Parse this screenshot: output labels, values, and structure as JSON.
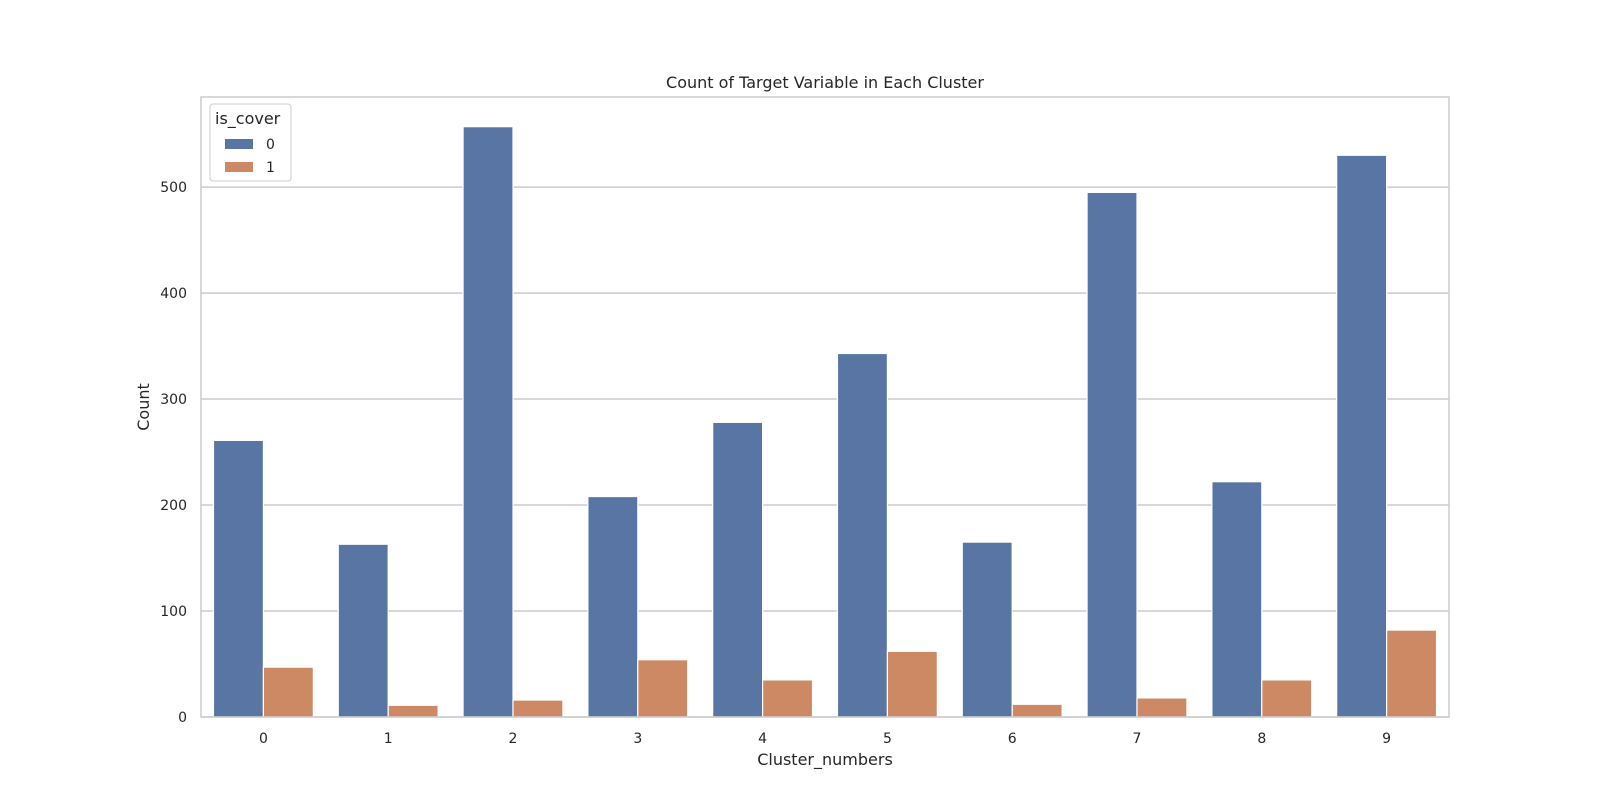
{
  "chart_data": {
    "type": "bar",
    "title": "Count of Target Variable in Each Cluster",
    "xlabel": "Cluster_numbers",
    "ylabel": "Count",
    "categories": [
      "0",
      "1",
      "2",
      "3",
      "4",
      "5",
      "6",
      "7",
      "8",
      "9"
    ],
    "series": [
      {
        "name": "0",
        "color": "#5875a4",
        "values": [
          261,
          163,
          557,
          208,
          278,
          343,
          165,
          495,
          222,
          530
        ]
      },
      {
        "name": "1",
        "color": "#cc8963",
        "values": [
          47,
          11,
          16,
          54,
          35,
          62,
          12,
          18,
          35,
          82
        ]
      }
    ],
    "legend": {
      "title": "is_cover",
      "position": "top-left"
    },
    "ylim": [
      0,
      585
    ],
    "yticks": [
      0,
      100,
      200,
      300,
      400,
      500
    ],
    "grid": "horizontal"
  }
}
